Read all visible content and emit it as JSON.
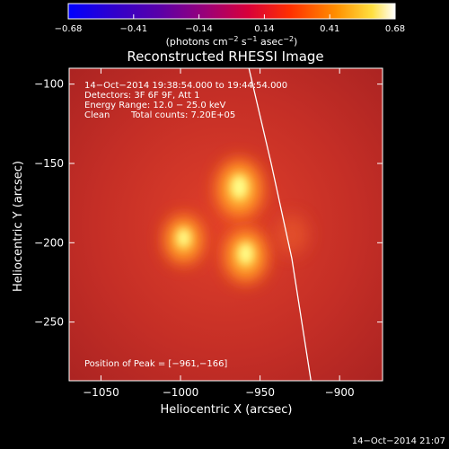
{
  "colorbar": {
    "ticks": [
      "−0.68",
      "−0.41",
      "−0.14",
      "0.14",
      "0.41",
      "0.68"
    ],
    "units_text": "(photons cm",
    "units_exp1": "−2",
    "units_mid": " s",
    "units_exp2": "−1",
    "units_end": " asec",
    "units_exp3": "−2",
    "units_close": ")"
  },
  "title": "Reconstructed RHESSI Image",
  "info": {
    "line1": "14−Oct−2014 19:38:54.000 to 19:44:54.000",
    "line2": "Detectors: 3F 6F 9F, Att 1",
    "line3": "Energy Range: 12.0 − 25.0 keV",
    "line4_a": "Clean",
    "line4_b": "Total counts: 7.20E+05"
  },
  "peak": "Position of Peak = [−961,−166]",
  "timestamp": "14−Oct−2014 21:07",
  "chart_data": {
    "type": "heatmap",
    "title": "Reconstructed RHESSI Image",
    "xlabel": "Heliocentric X (arcsec)",
    "ylabel": "Heliocentric Y (arcsec)",
    "xlim": [
      -1070,
      -873
    ],
    "ylim": [
      -287,
      -90
    ],
    "x_ticks": [
      -1050,
      -1000,
      -950,
      -900
    ],
    "x_tick_labels": [
      "−1050",
      "−1000",
      "−950",
      "−900"
    ],
    "y_ticks": [
      -100,
      -150,
      -200,
      -250
    ],
    "y_tick_labels": [
      "−100",
      "−150",
      "−200",
      "−250"
    ],
    "colorbar_range": [
      -0.68,
      0.68
    ],
    "colormap": "hot",
    "sources": [
      {
        "x": -963,
        "y": -166,
        "intensity": 1.0
      },
      {
        "x": -959,
        "y": -208,
        "intensity": 0.82
      },
      {
        "x": -998,
        "y": -198,
        "intensity": 0.62
      },
      {
        "x": -930,
        "y": -195,
        "intensity": 0.25
      }
    ],
    "limb_curve": [
      [
        -957,
        -90
      ],
      [
        -943,
        -150
      ],
      [
        -930,
        -210
      ],
      [
        -918,
        -287
      ]
    ],
    "colors": {
      "background": "#000000",
      "limb": "#ffffff",
      "text": "#ffffff"
    }
  }
}
